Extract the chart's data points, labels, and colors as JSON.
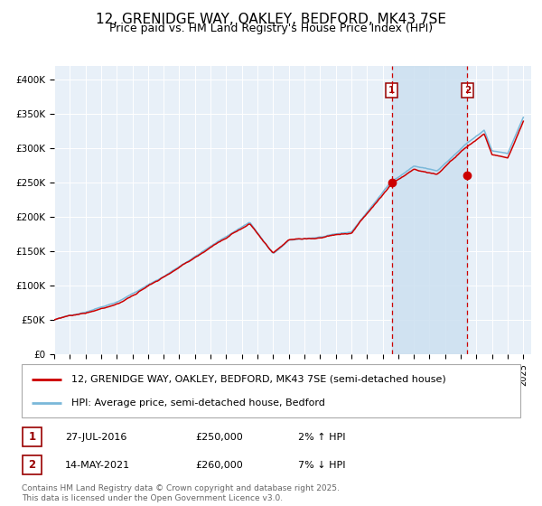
{
  "title": "12, GRENIDGE WAY, OAKLEY, BEDFORD, MK43 7SE",
  "subtitle": "Price paid vs. HM Land Registry's House Price Index (HPI)",
  "legend1": "12, GRENIDGE WAY, OAKLEY, BEDFORD, MK43 7SE (semi-detached house)",
  "legend2": "HPI: Average price, semi-detached house, Bedford",
  "sale1_date": "27-JUL-2016",
  "sale1_price": 250000,
  "sale1_label": "2% ↑ HPI",
  "sale2_date": "14-MAY-2021",
  "sale2_price": 260000,
  "sale2_label": "7% ↓ HPI",
  "ylim": [
    0,
    420000
  ],
  "yticks": [
    0,
    50000,
    100000,
    150000,
    200000,
    250000,
    300000,
    350000,
    400000
  ],
  "ytick_labels": [
    "£0",
    "£50K",
    "£100K",
    "£150K",
    "£200K",
    "£250K",
    "£300K",
    "£350K",
    "£400K"
  ],
  "hpi_color": "#7ab8d9",
  "price_color": "#cc0000",
  "sale_marker_color": "#cc0000",
  "vline_color": "#cc0000",
  "shade_color": "#cce0f0",
  "background_color": "#e8f0f8",
  "footnote": "Contains HM Land Registry data © Crown copyright and database right 2025.\nThis data is licensed under the Open Government Licence v3.0.",
  "title_fontsize": 11,
  "tick_fontsize": 7.5,
  "legend_fontsize": 8,
  "footnote_fontsize": 6.5,
  "anchors_t": [
    1995.0,
    1997.0,
    1999.0,
    2002.0,
    2004.5,
    2007.5,
    2009.0,
    2010.0,
    2012.0,
    2014.0,
    2016.5,
    2018.0,
    2019.5,
    2021.3,
    2022.5,
    2023.0,
    2024.0,
    2025.0
  ],
  "anchors_v": [
    50000,
    62000,
    78000,
    115000,
    152000,
    195000,
    148000,
    167000,
    172000,
    178000,
    250000,
    275000,
    268000,
    305000,
    325000,
    295000,
    292000,
    345000
  ]
}
